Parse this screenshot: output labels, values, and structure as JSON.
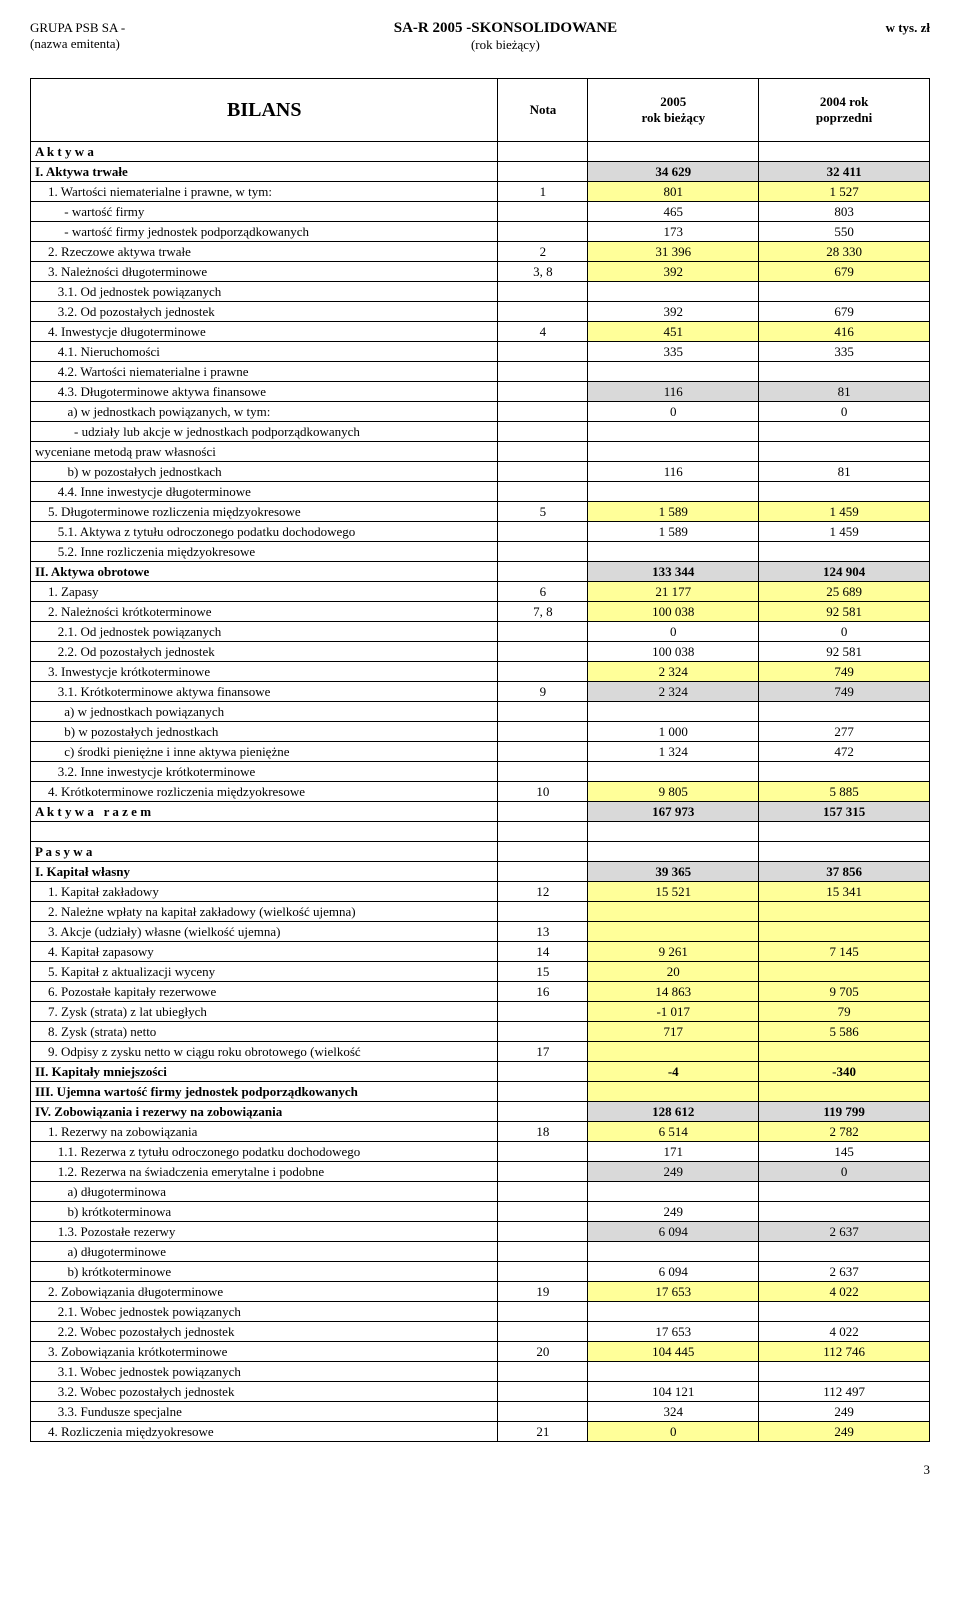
{
  "header": {
    "company": "GRUPA PSB SA -",
    "issuer_label": "(nazwa emitenta)",
    "report_title": "SA-R 2005 -SKONSOLIDOWANE",
    "report_sub": "(rok bieżący)",
    "unit": "w tys. zł"
  },
  "table_head": {
    "title": "BILANS",
    "nota": "Nota",
    "col2005_l1": "2005",
    "col2005_l2": "rok bieżący",
    "col2004_l1": "2004       rok",
    "col2004_l2": "poprzedni"
  },
  "colors": {
    "grey": "#d9d9d9",
    "yellow": "#ffff99",
    "border": "#000000",
    "bg": "#ffffff"
  },
  "rows": [
    {
      "label": "A k t y w a",
      "bold": true
    },
    {
      "label": "I. Aktywa trwałe",
      "bold": true,
      "v1": "34 629",
      "v2": "32 411",
      "bg": "grey"
    },
    {
      "label": "    1. Wartości niematerialne i prawne, w tym:",
      "nota": "1",
      "v1": "801",
      "v2": "1 527",
      "bg": "yellow"
    },
    {
      "label": "         - wartość firmy",
      "v1": "465",
      "v2": "803"
    },
    {
      "label": "         - wartość firmy jednostek podporządkowanych",
      "v1": "173",
      "v2": "550"
    },
    {
      "label": "    2. Rzeczowe aktywa trwałe",
      "nota": "2",
      "v1": "31 396",
      "v2": "28 330",
      "bg": "yellow"
    },
    {
      "label": "    3. Należności długoterminowe",
      "nota": "3, 8",
      "v1": "392",
      "v2": "679",
      "bg": "yellow"
    },
    {
      "label": "       3.1. Od jednostek powiązanych"
    },
    {
      "label": "       3.2. Od pozostałych jednostek",
      "v1": "392",
      "v2": "679"
    },
    {
      "label": "    4. Inwestycje długoterminowe",
      "nota": "4",
      "v1": "451",
      "v2": "416",
      "bg": "yellow"
    },
    {
      "label": "       4.1. Nieruchomości",
      "v1": "335",
      "v2": "335"
    },
    {
      "label": "       4.2. Wartości niematerialne i prawne"
    },
    {
      "label": "       4.3. Długoterminowe aktywa finansowe",
      "v1": "116",
      "v2": "81",
      "bg": "grey"
    },
    {
      "label": "          a) w jednostkach powiązanych, w tym:",
      "v1": "0",
      "v2": "0"
    },
    {
      "label": "            - udziały lub akcje w jednostkach podporządkowanych"
    },
    {
      "label": "wyceniane metodą praw własności"
    },
    {
      "label": "          b) w pozostałych jednostkach",
      "v1": "116",
      "v2": "81"
    },
    {
      "label": "       4.4. Inne inwestycje długoterminowe"
    },
    {
      "label": "    5. Długoterminowe rozliczenia międzyokresowe",
      "nota": "5",
      "v1": "1 589",
      "v2": "1 459",
      "bg": "yellow"
    },
    {
      "label": "       5.1. Aktywa z tytułu odroczonego podatku dochodowego",
      "v1": "1 589",
      "v2": "1 459"
    },
    {
      "label": "       5.2. Inne rozliczenia międzyokresowe"
    },
    {
      "label": "II. Aktywa obrotowe",
      "bold": true,
      "v1": "133 344",
      "v2": "124 904",
      "bg": "grey"
    },
    {
      "label": "    1. Zapasy",
      "nota": "6",
      "v1": "21 177",
      "v2": "25 689",
      "bg": "yellow"
    },
    {
      "label": "    2. Należności krótkoterminowe",
      "nota": "7, 8",
      "v1": "100 038",
      "v2": "92 581",
      "bg": "yellow"
    },
    {
      "label": "       2.1. Od jednostek powiązanych",
      "v1": "0",
      "v2": "0"
    },
    {
      "label": "       2.2. Od pozostałych jednostek",
      "v1": "100 038",
      "v2": "92 581"
    },
    {
      "label": "    3. Inwestycje krótkoterminowe",
      "v1": "2 324",
      "v2": "749",
      "bg": "yellow"
    },
    {
      "label": "       3.1. Krótkoterminowe aktywa finansowe",
      "nota": "9",
      "v1": "2 324",
      "v2": "749",
      "bg": "grey"
    },
    {
      "label": "         a) w jednostkach powiązanych"
    },
    {
      "label": "         b) w pozostałych jednostkach",
      "v1": "1 000",
      "v2": "277"
    },
    {
      "label": "         c) środki pieniężne i inne aktywa pieniężne",
      "v1": "1 324",
      "v2": "472"
    },
    {
      "label": "       3.2. Inne inwestycje krótkoterminowe"
    },
    {
      "label": "    4. Krótkoterminowe rozliczenia międzyokresowe",
      "nota": "10",
      "v1": "9 805",
      "v2": "5 885",
      "bg": "yellow"
    },
    {
      "label": "A k t y w a   r a z e m",
      "bold": true,
      "v1": "167 973",
      "v2": "157 315",
      "bg": "grey"
    },
    {
      "gap": true
    },
    {
      "label": "P a s y w a",
      "bold": true
    },
    {
      "label": "I. Kapitał własny",
      "bold": true,
      "v1": "39 365",
      "v2": "37 856",
      "bg": "grey"
    },
    {
      "label": "    1. Kapitał zakładowy",
      "nota": "12",
      "v1": "15 521",
      "v2": "15 341",
      "bg": "yellow"
    },
    {
      "label": "    2. Należne wpłaty na kapitał zakładowy (wielkość ujemna)",
      "bg": "yellow"
    },
    {
      "label": "    3. Akcje (udziały) własne (wielkość ujemna)",
      "nota": "13",
      "bg": "yellow"
    },
    {
      "label": "    4. Kapitał zapasowy",
      "nota": "14",
      "v1": "9 261",
      "v2": "7 145",
      "bg": "yellow"
    },
    {
      "label": "    5. Kapitał z aktualizacji wyceny",
      "nota": "15",
      "v1": "20",
      "bg": "yellow"
    },
    {
      "label": "    6. Pozostałe kapitały rezerwowe",
      "nota": "16",
      "v1": "14 863",
      "v2": "9 705",
      "bg": "yellow"
    },
    {
      "label": "    7. Zysk (strata) z lat ubiegłych",
      "v1": "-1 017",
      "v2": "79",
      "bg": "yellow"
    },
    {
      "label": "    8. Zysk (strata) netto",
      "v1": "717",
      "v2": "5 586",
      "bg": "yellow"
    },
    {
      "label": "    9. Odpisy z zysku netto w ciągu roku obrotowego (wielkość",
      "nota": "17",
      "bg": "yellow",
      "truncated": true
    },
    {
      "label": "II. Kapitały mniejszości",
      "bold": true,
      "v1": "-4",
      "v2": "-340",
      "bg": "yellow"
    },
    {
      "label": "III. Ujemna wartość firmy jednostek podporządkowanych",
      "bold": true,
      "bg": "yellow"
    },
    {
      "label": "IV. Zobowiązania i rezerwy na zobowiązania",
      "bold": true,
      "v1": "128 612",
      "v2": "119 799",
      "bg": "grey"
    },
    {
      "label": "    1. Rezerwy na zobowiązania",
      "nota": "18",
      "v1": "6 514",
      "v2": "2 782",
      "bg": "yellow"
    },
    {
      "label": "       1.1. Rezerwa z tytułu odroczonego podatku dochodowego",
      "v1": "171",
      "v2": "145"
    },
    {
      "label": "       1.2. Rezerwa na świadczenia emerytalne i podobne",
      "v1": "249",
      "v2": "0",
      "bg": "grey"
    },
    {
      "label": "          a) długoterminowa"
    },
    {
      "label": "          b) krótkoterminowa",
      "v1": "249"
    },
    {
      "label": "       1.3. Pozostałe rezerwy",
      "v1": "6 094",
      "v2": "2 637",
      "bg": "grey"
    },
    {
      "label": "          a) długoterminowe"
    },
    {
      "label": "          b) krótkoterminowe",
      "v1": "6 094",
      "v2": "2 637"
    },
    {
      "label": "    2. Zobowiązania długoterminowe",
      "nota": "19",
      "v1": "17 653",
      "v2": "4 022",
      "bg": "yellow"
    },
    {
      "label": "       2.1. Wobec jednostek powiązanych"
    },
    {
      "label": "       2.2. Wobec pozostałych jednostek",
      "v1": "17 653",
      "v2": "4 022"
    },
    {
      "label": "    3. Zobowiązania krótkoterminowe",
      "nota": "20",
      "v1": "104 445",
      "v2": "112 746",
      "bg": "yellow"
    },
    {
      "label": "       3.1. Wobec jednostek powiązanych"
    },
    {
      "label": "       3.2. Wobec pozostałych jednostek",
      "v1": "104 121",
      "v2": "112 497"
    },
    {
      "label": "       3.3. Fundusze specjalne",
      "v1": "324",
      "v2": "249"
    },
    {
      "label": "    4. Rozliczenia międzyokresowe",
      "nota": "21",
      "v1": "0",
      "v2": "249",
      "bg": "yellow"
    }
  ],
  "page_number": "3"
}
